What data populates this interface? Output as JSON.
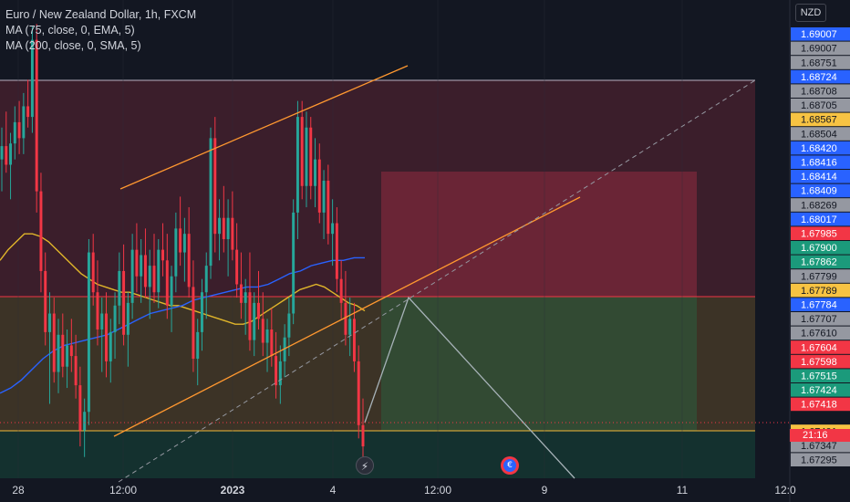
{
  "legend": {
    "symbol": "Euro / New Zealand Dollar, 1h, FXCM",
    "ma1": "MA (75, close, 0, EMA, 5)",
    "ma2": "MA (200, close, 0, SMA, 5)"
  },
  "axis": {
    "currency": "NZD",
    "countdown": "21:16"
  },
  "colors": {
    "background": "#131722",
    "bull": "#26a69a",
    "bear": "#f23645",
    "ema": "#e0b52a",
    "sma": "#2962ff",
    "channel": "#ff9830"
  },
  "chart_data": {
    "type": "candlestick",
    "symbol": "EURNZD",
    "timeframe": "1h",
    "ylim": [
      1.673,
      1.691
    ],
    "x_tick_labels": [
      {
        "label": "28",
        "bold": false
      },
      {
        "label": "12:00",
        "bold": false
      },
      {
        "label": "2023",
        "bold": true
      },
      {
        "label": "4",
        "bold": false
      },
      {
        "label": "12:00",
        "bold": false
      },
      {
        "label": "9",
        "bold": false
      },
      {
        "label": "11",
        "bold": false
      },
      {
        "label": "12:0",
        "bold": false
      }
    ],
    "price_labels": [
      {
        "value": "1.69007",
        "bg": "#2962ff",
        "fg": "#ffffff"
      },
      {
        "value": "1.69007",
        "bg": "#9598a1",
        "fg": "#131722"
      },
      {
        "value": "1.68751",
        "bg": "#9598a1",
        "fg": "#131722"
      },
      {
        "value": "1.68724",
        "bg": "#2962ff",
        "fg": "#ffffff"
      },
      {
        "value": "1.68708",
        "bg": "#9598a1",
        "fg": "#131722"
      },
      {
        "value": "1.68705",
        "bg": "#9598a1",
        "fg": "#131722"
      },
      {
        "value": "1.68567",
        "bg": "#f7c343",
        "fg": "#131722"
      },
      {
        "value": "1.68504",
        "bg": "#9598a1",
        "fg": "#131722"
      },
      {
        "value": "1.68420",
        "bg": "#2962ff",
        "fg": "#ffffff"
      },
      {
        "value": "1.68416",
        "bg": "#2962ff",
        "fg": "#ffffff"
      },
      {
        "value": "1.68414",
        "bg": "#2962ff",
        "fg": "#ffffff"
      },
      {
        "value": "1.68409",
        "bg": "#2962ff",
        "fg": "#ffffff"
      },
      {
        "value": "1.68269",
        "bg": "#9598a1",
        "fg": "#131722"
      },
      {
        "value": "1.68017",
        "bg": "#2962ff",
        "fg": "#ffffff"
      },
      {
        "value": "1.67985",
        "bg": "#f23645",
        "fg": "#ffffff"
      },
      {
        "value": "1.67900",
        "bg": "#1b9a7b",
        "fg": "#ffffff"
      },
      {
        "value": "1.67862",
        "bg": "#1b9a7b",
        "fg": "#ffffff"
      },
      {
        "value": "1.67799",
        "bg": "#9598a1",
        "fg": "#131722"
      },
      {
        "value": "1.67789",
        "bg": "#f7c343",
        "fg": "#131722"
      },
      {
        "value": "1.67784",
        "bg": "#2962ff",
        "fg": "#ffffff"
      },
      {
        "value": "1.67707",
        "bg": "#9598a1",
        "fg": "#131722"
      },
      {
        "value": "1.67610",
        "bg": "#9598a1",
        "fg": "#131722"
      },
      {
        "value": "1.67604",
        "bg": "#f23645",
        "fg": "#ffffff"
      },
      {
        "value": "1.67598",
        "bg": "#f23645",
        "fg": "#ffffff"
      },
      {
        "value": "1.67515",
        "bg": "#1b9a7b",
        "fg": "#ffffff"
      },
      {
        "value": "1.67424",
        "bg": "#1b9a7b",
        "fg": "#ffffff"
      },
      {
        "value": "1.67418",
        "bg": "#f23645",
        "fg": "#ffffff"
      },
      {
        "value": "1.67401",
        "bg": "#f7c343",
        "fg": "#131722"
      },
      {
        "value": "1.67347",
        "bg": "#9598a1",
        "fg": "#131722"
      },
      {
        "value": "1.67295",
        "bg": "#9598a1",
        "fg": "#131722"
      }
    ],
    "candles": [
      [
        1.685,
        1.6862,
        1.6838,
        1.6855
      ],
      [
        1.6855,
        1.6868,
        1.6845,
        1.6848
      ],
      [
        1.6848,
        1.686,
        1.6835,
        1.6856
      ],
      [
        1.6856,
        1.687,
        1.685,
        1.6864
      ],
      [
        1.6864,
        1.6872,
        1.6852,
        1.6858
      ],
      [
        1.6858,
        1.6875,
        1.6852,
        1.687
      ],
      [
        1.687,
        1.688,
        1.6862,
        1.6866
      ],
      [
        1.6866,
        1.69,
        1.686,
        1.6895
      ],
      [
        1.6895,
        1.6901,
        1.683,
        1.6838
      ],
      [
        1.6838,
        1.6845,
        1.68,
        1.6808
      ],
      [
        1.6808,
        1.6815,
        1.678,
        1.6785
      ],
      [
        1.6785,
        1.68,
        1.6758,
        1.6792
      ],
      [
        1.6792,
        1.6798,
        1.6766,
        1.677
      ],
      [
        1.677,
        1.679,
        1.6762,
        1.6784
      ],
      [
        1.6784,
        1.6792,
        1.6768,
        1.6772
      ],
      [
        1.6772,
        1.6786,
        1.6764,
        1.678
      ],
      [
        1.678,
        1.679,
        1.677,
        1.6776
      ],
      [
        1.6776,
        1.6784,
        1.676,
        1.6765
      ],
      [
        1.6765,
        1.6772,
        1.6742,
        1.6748
      ],
      [
        1.6748,
        1.676,
        1.6738,
        1.6755
      ],
      [
        1.6755,
        1.682,
        1.675,
        1.6815
      ],
      [
        1.6815,
        1.6822,
        1.6795,
        1.68
      ],
      [
        1.68,
        1.6812,
        1.678,
        1.6786
      ],
      [
        1.6786,
        1.6798,
        1.677,
        1.6792
      ],
      [
        1.6792,
        1.68,
        1.6768,
        1.6774
      ],
      [
        1.6774,
        1.679,
        1.6766,
        1.6785
      ],
      [
        1.6785,
        1.68,
        1.6775,
        1.6795
      ],
      [
        1.6795,
        1.6815,
        1.6788,
        1.6808
      ],
      [
        1.6808,
        1.6818,
        1.678,
        1.6784
      ],
      [
        1.6784,
        1.68,
        1.6772,
        1.6796
      ],
      [
        1.6796,
        1.6822,
        1.679,
        1.6816
      ],
      [
        1.6816,
        1.6826,
        1.68,
        1.6806
      ],
      [
        1.6806,
        1.682,
        1.6796,
        1.6814
      ],
      [
        1.6814,
        1.6824,
        1.6798,
        1.6802
      ],
      [
        1.6802,
        1.6816,
        1.679,
        1.681
      ],
      [
        1.681,
        1.6822,
        1.6796,
        1.68
      ],
      [
        1.68,
        1.682,
        1.6794,
        1.6816
      ],
      [
        1.6816,
        1.6826,
        1.6806,
        1.6812
      ],
      [
        1.6812,
        1.6822,
        1.679,
        1.6795
      ],
      [
        1.6795,
        1.681,
        1.6785,
        1.6806
      ],
      [
        1.6806,
        1.683,
        1.68,
        1.6824
      ],
      [
        1.6824,
        1.6836,
        1.681,
        1.6815
      ],
      [
        1.6815,
        1.6828,
        1.6804,
        1.6822
      ],
      [
        1.6822,
        1.6832,
        1.6798,
        1.6802
      ],
      [
        1.6802,
        1.6812,
        1.677,
        1.6775
      ],
      [
        1.6775,
        1.679,
        1.6765,
        1.6785
      ],
      [
        1.6785,
        1.6805,
        1.6778,
        1.68
      ],
      [
        1.68,
        1.6815,
        1.679,
        1.681
      ],
      [
        1.681,
        1.6862,
        1.6805,
        1.6858
      ],
      [
        1.6858,
        1.6866,
        1.6815,
        1.6822
      ],
      [
        1.6822,
        1.6835,
        1.6812,
        1.6828
      ],
      [
        1.6828,
        1.684,
        1.6815,
        1.682
      ],
      [
        1.682,
        1.6835,
        1.6806,
        1.6828
      ],
      [
        1.6828,
        1.6838,
        1.6812,
        1.6816
      ],
      [
        1.6816,
        1.6826,
        1.6798,
        1.6803
      ],
      [
        1.6803,
        1.6815,
        1.679,
        1.6796
      ],
      [
        1.6796,
        1.6805,
        1.6784,
        1.68
      ],
      [
        1.68,
        1.6815,
        1.6778,
        1.6782
      ],
      [
        1.6782,
        1.68,
        1.6776,
        1.6796
      ],
      [
        1.6796,
        1.6808,
        1.6786,
        1.679
      ],
      [
        1.679,
        1.68,
        1.6776,
        1.6781
      ],
      [
        1.6781,
        1.679,
        1.677,
        1.6786
      ],
      [
        1.6786,
        1.6794,
        1.6772,
        1.6776
      ],
      [
        1.6776,
        1.6785,
        1.676,
        1.6765
      ],
      [
        1.6765,
        1.678,
        1.6758,
        1.6774
      ],
      [
        1.6774,
        1.6788,
        1.6768,
        1.6783
      ],
      [
        1.6783,
        1.6798,
        1.6776,
        1.6792
      ],
      [
        1.6792,
        1.6835,
        1.6788,
        1.683
      ],
      [
        1.683,
        1.6872,
        1.682,
        1.6866
      ],
      [
        1.6866,
        1.6872,
        1.6835,
        1.684
      ],
      [
        1.684,
        1.6868,
        1.6832,
        1.6862
      ],
      [
        1.6862,
        1.6866,
        1.6835,
        1.684
      ],
      [
        1.684,
        1.6858,
        1.6832,
        1.685
      ],
      [
        1.685,
        1.6856,
        1.6826,
        1.683
      ],
      [
        1.683,
        1.6846,
        1.682,
        1.6842
      ],
      [
        1.6842,
        1.6848,
        1.6818,
        1.6822
      ],
      [
        1.6822,
        1.6835,
        1.681,
        1.6826
      ],
      [
        1.6826,
        1.6832,
        1.68,
        1.6805
      ],
      [
        1.6805,
        1.6812,
        1.679,
        1.6796
      ],
      [
        1.6796,
        1.6808,
        1.678,
        1.6784
      ],
      [
        1.6784,
        1.6798,
        1.6776,
        1.679
      ],
      [
        1.679,
        1.6796,
        1.677,
        1.6774
      ],
      [
        1.6774,
        1.678,
        1.6745,
        1.675
      ],
      [
        1.675,
        1.676,
        1.6738,
        1.6742
      ]
    ],
    "ema75": [
      1.6812,
      1.6816,
      1.6819,
      1.6822,
      1.6822,
      1.6821,
      1.6819,
      1.6816,
      1.6813,
      1.681,
      1.6807,
      1.6805,
      1.6803,
      1.6802,
      1.6801,
      1.68,
      1.68,
      1.6799,
      1.6798,
      1.6797,
      1.6796,
      1.6795,
      1.6795,
      1.6794,
      1.6793,
      1.6792,
      1.6791,
      1.679,
      1.6789,
      1.6788,
      1.6788,
      1.6789,
      1.6791,
      1.6793,
      1.6795,
      1.6797,
      1.6799,
      1.6801,
      1.6802,
      1.6803,
      1.6802,
      1.68,
      1.6798,
      1.6796,
      1.6795,
      1.6793
    ],
    "sma200": [
      1.6762,
      1.6764,
      1.6767,
      1.6771,
      1.6775,
      1.6778,
      1.678,
      1.6781,
      1.6782,
      1.6783,
      1.6784,
      1.6786,
      1.6788,
      1.679,
      1.6792,
      1.6793,
      1.6794,
      1.6795,
      1.6797,
      1.6798,
      1.6799,
      1.68,
      1.6801,
      1.6802,
      1.6802,
      1.6803,
      1.6805,
      1.6807,
      1.6808,
      1.681,
      1.6811,
      1.6812,
      1.6812,
      1.6813,
      1.6813
    ]
  }
}
